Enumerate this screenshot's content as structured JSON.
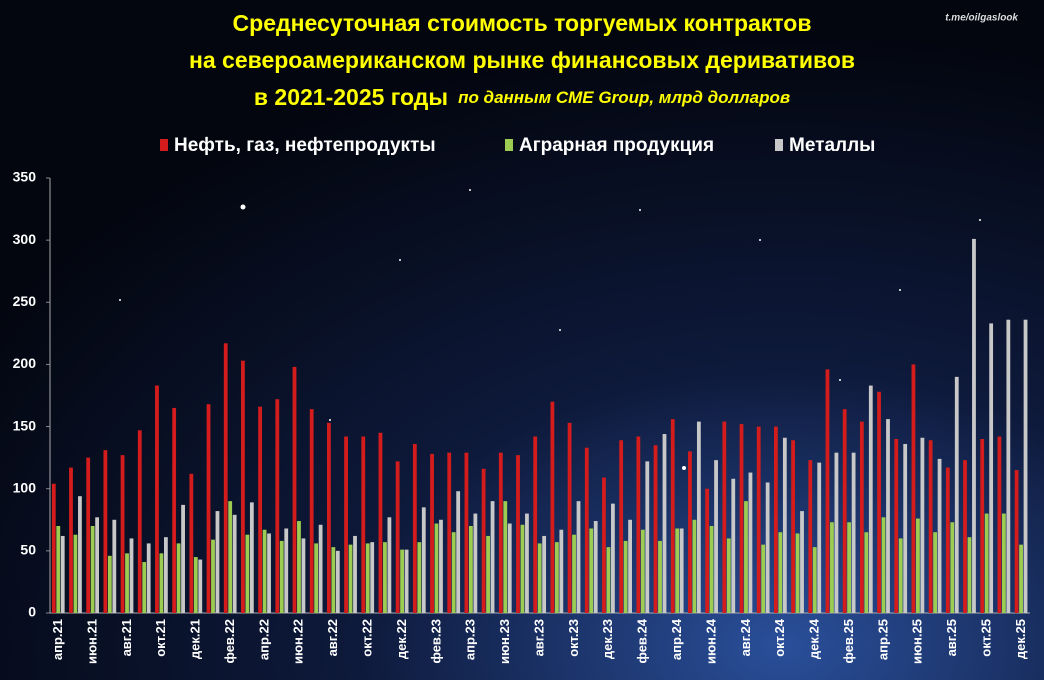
{
  "chart_data": {
    "type": "bar",
    "title": [
      "Среднесуточная стоимость торгуемых контрактов",
      "на североамериканском рынке финансовых деривативов",
      "в 2021-2025 годы"
    ],
    "subtitle": "по данным CME Group, млрд долларов",
    "source": "t.me/oilgaslook",
    "categories": [
      "апр.21",
      null,
      "июн.21",
      null,
      "авг.21",
      null,
      "окт.21",
      null,
      "дек.21",
      null,
      "фев.22",
      null,
      "апр.22",
      null,
      "июн.22",
      null,
      "авг.22",
      null,
      "окт.22",
      null,
      "дек.22",
      null,
      "фев.23",
      null,
      "апр.23",
      null,
      "июн.23",
      null,
      "авг.23",
      null,
      "окт.23",
      null,
      "дек.23",
      null,
      "фев.24",
      null,
      "апр.24",
      null,
      "июн.24",
      null,
      "авг.24",
      null,
      "окт.24",
      null,
      "дек.24",
      null,
      "фев.25",
      null,
      "апр.25",
      null,
      "июн.25",
      null,
      "авг.25",
      null,
      "окт.25",
      null,
      "дек.25"
    ],
    "series": [
      {
        "name": "Нефть, газ, нефтепродукты",
        "color": "#d41c1c",
        "values": [
          104,
          117,
          125,
          131,
          127,
          147,
          183,
          165,
          112,
          168,
          217,
          203,
          166,
          172,
          198,
          164,
          153,
          142,
          142,
          145,
          122,
          136,
          128,
          129,
          129,
          116,
          129,
          127,
          142,
          170,
          153,
          133,
          109,
          139,
          142,
          135,
          156,
          130,
          100,
          154,
          152,
          150,
          150,
          139,
          123,
          196,
          164,
          154,
          178,
          140,
          200,
          139,
          117,
          123,
          140,
          142,
          115
        ]
      },
      {
        "name": "Аграрная продукция",
        "color": "#9ccc52",
        "values": [
          70,
          63,
          70,
          46,
          48,
          41,
          48,
          56,
          45,
          59,
          90,
          63,
          67,
          58,
          74,
          56,
          53,
          55,
          56,
          57,
          51,
          57,
          72,
          65,
          70,
          62,
          90,
          71,
          56,
          57,
          63,
          68,
          53,
          58,
          67,
          58,
          68,
          75,
          70,
          60,
          90,
          55,
          65,
          64,
          53,
          73,
          73,
          65,
          77,
          60,
          76,
          65,
          73,
          61,
          80,
          80,
          55
        ]
      },
      {
        "name": "Металлы",
        "color": "#c8c8c8",
        "values": [
          62,
          94,
          77,
          75,
          60,
          56,
          61,
          87,
          43,
          82,
          79,
          89,
          64,
          68,
          60,
          71,
          50,
          62,
          57,
          77,
          51,
          85,
          75,
          98,
          80,
          90,
          72,
          80,
          62,
          67,
          90,
          74,
          88,
          75,
          122,
          144,
          68,
          154,
          123,
          108,
          113,
          105,
          141,
          82,
          121,
          129,
          129,
          183,
          156,
          136,
          141,
          124,
          190,
          301,
          233,
          236,
          236
        ]
      }
    ],
    "ylim": [
      0,
      350
    ],
    "yticks": [
      0,
      50,
      100,
      150,
      200,
      250,
      300,
      350
    ],
    "grid": false
  }
}
